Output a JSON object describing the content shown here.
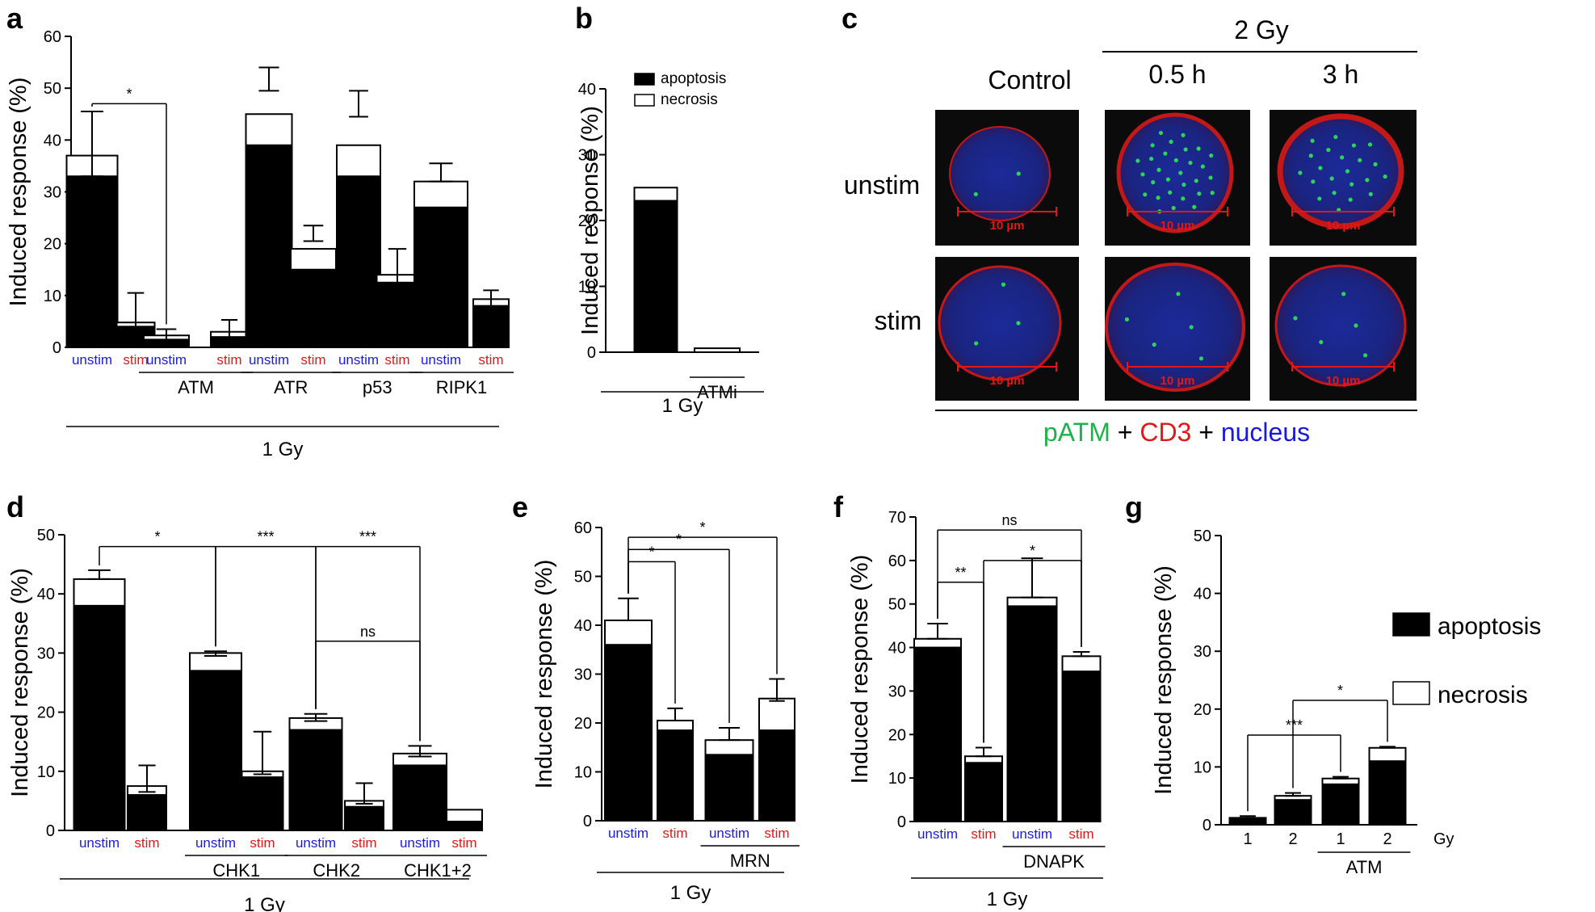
{
  "colors": {
    "apoptosis": "#000000",
    "necrosis": "#ffffff",
    "unstim": "#1a1adc",
    "stim": "#e01818",
    "green": "#1db24a",
    "red": "#e01818",
    "blue": "#1a1adc"
  },
  "micro": {
    "title": "2 Gy",
    "cols": [
      "Control",
      "0.5 h",
      "3 h"
    ],
    "rows": [
      "unstim",
      "stim"
    ],
    "scalebar": "10 µm",
    "legend": [
      {
        "text": "pATM",
        "color": "#1db24a"
      },
      {
        "text": " + ",
        "color": "#000000"
      },
      {
        "text": "CD3",
        "color": "#e01818"
      },
      {
        "text": " + ",
        "color": "#000000"
      },
      {
        "text": "nucleus",
        "color": "#1a1adc"
      }
    ]
  },
  "chart_data": [
    {
      "panel": "a",
      "type": "bar",
      "ylabel": "Induced response (%)",
      "ylim": [
        0,
        60
      ],
      "yticks": [
        0,
        10,
        20,
        30,
        40,
        50,
        60
      ],
      "categories": [
        "unstim",
        "stim",
        "unstim",
        "stim",
        "unstim",
        "stim",
        "unstim",
        "stim",
        "unstim",
        "stim"
      ],
      "series": [
        {
          "name": "apoptosis",
          "values": [
            33,
            4,
            1.5,
            2,
            39,
            15,
            33,
            12.5,
            27,
            8
          ]
        },
        {
          "name": "necrosis",
          "values": [
            4,
            0.8,
            0.8,
            1,
            6,
            4,
            6,
            1.5,
            5,
            1.3
          ]
        }
      ],
      "errors": [
        [
          33,
          45.5
        ],
        [
          3.5,
          10.5
        ],
        [
          0,
          3.5
        ],
        [
          1.5,
          5.3
        ],
        [
          49.5,
          54
        ],
        [
          20.5,
          23.5
        ],
        [
          44.5,
          49.5
        ],
        [
          12,
          19
        ],
        [
          32,
          35.5
        ],
        [
          7,
          11
        ]
      ],
      "groups": [
        {
          "label": "ATM",
          "from": 2,
          "to": 3
        },
        {
          "label": "ATR",
          "from": 4,
          "to": 5
        },
        {
          "label": "p53",
          "from": 6,
          "to": 7
        },
        {
          "label": "RIPK1",
          "from": 8,
          "to": 9
        }
      ],
      "treatment": "1 Gy",
      "sig": [
        {
          "from": 0,
          "to": 2,
          "y": 47,
          "text": "*"
        }
      ]
    },
    {
      "panel": "b",
      "type": "bar",
      "ylabel": "Induced response (%)",
      "ylim": [
        0,
        40
      ],
      "yticks": [
        0,
        10,
        20,
        30,
        40
      ],
      "categories": [
        "",
        ""
      ],
      "series": [
        {
          "name": "apoptosis",
          "values": [
            23,
            0
          ]
        },
        {
          "name": "necrosis",
          "values": [
            2,
            0.6
          ]
        }
      ],
      "groups": [
        {
          "label": "ATMi",
          "from": 1,
          "to": 1
        }
      ],
      "treatment": "1 Gy",
      "legend": [
        "apoptosis",
        "necrosis"
      ]
    },
    {
      "panel": "d",
      "type": "bar",
      "ylabel": "Induced response (%)",
      "ylim": [
        0,
        50
      ],
      "yticks": [
        0,
        10,
        20,
        30,
        40,
        50
      ],
      "categories": [
        "unstim",
        "stim",
        "unstim",
        "stim",
        "unstim",
        "stim",
        "unstim",
        "stim"
      ],
      "series": [
        {
          "name": "apoptosis",
          "values": [
            38,
            6,
            27,
            9,
            17,
            4,
            11,
            1.5
          ]
        },
        {
          "name": "necrosis",
          "values": [
            4.5,
            1.5,
            3,
            1,
            2,
            1,
            2,
            2
          ]
        }
      ],
      "errors": [
        [
          42.5,
          44
        ],
        [
          6.5,
          11
        ],
        [
          29.5,
          30.3
        ],
        [
          9.5,
          16.7
        ],
        [
          18.5,
          19.7
        ],
        [
          4.5,
          8
        ],
        [
          12.5,
          14.3
        ],
        [
          0,
          0
        ]
      ],
      "groups": [
        {
          "label": "CHK1",
          "from": 2,
          "to": 3
        },
        {
          "label": "CHK2",
          "from": 4,
          "to": 5
        },
        {
          "label": "CHK1+2",
          "from": 6,
          "to": 7
        }
      ],
      "treatment": "1 Gy",
      "sig": [
        {
          "from": 0,
          "to": 2,
          "y": 48,
          "text": "*"
        },
        {
          "from": 2,
          "to": 4,
          "y": 48,
          "text": "***"
        },
        {
          "from": 4,
          "to": 6,
          "y": 48,
          "text": "***"
        },
        {
          "from": 4,
          "to": 6,
          "y": 32,
          "text": "ns"
        }
      ]
    },
    {
      "panel": "e",
      "type": "bar",
      "ylabel": "Induced response (%)",
      "ylim": [
        0,
        60
      ],
      "yticks": [
        0,
        10,
        20,
        30,
        40,
        50,
        60
      ],
      "categories": [
        "unstim",
        "stim",
        "unstim",
        "stim"
      ],
      "series": [
        {
          "name": "apoptosis",
          "values": [
            36,
            18.5,
            13.5,
            18.5
          ]
        },
        {
          "name": "necrosis",
          "values": [
            5,
            2,
            3,
            6.5
          ]
        }
      ],
      "errors": [
        [
          41,
          45.5
        ],
        [
          20.5,
          23
        ],
        [
          16.5,
          19
        ],
        [
          24.5,
          29
        ]
      ],
      "groups": [
        {
          "label": "MRN",
          "from": 2,
          "to": 3
        }
      ],
      "treatment": "1 Gy",
      "sig": [
        {
          "from": 0,
          "to": 1,
          "y": 53,
          "text": "*"
        },
        {
          "from": 0,
          "to": 2,
          "y": 55.5,
          "text": "*"
        },
        {
          "from": 0,
          "to": 3,
          "y": 58,
          "text": "*"
        }
      ]
    },
    {
      "panel": "f",
      "type": "bar",
      "ylabel": "Induced response (%)",
      "ylim": [
        0,
        70
      ],
      "yticks": [
        0,
        10,
        20,
        30,
        40,
        50,
        60,
        70
      ],
      "categories": [
        "unstim",
        "stim",
        "unstim",
        "stim"
      ],
      "series": [
        {
          "name": "apoptosis",
          "values": [
            40,
            13.5,
            49.5,
            34.5
          ]
        },
        {
          "name": "necrosis",
          "values": [
            2,
            1.5,
            2,
            3.5
          ]
        }
      ],
      "errors": [
        [
          42,
          45.5
        ],
        [
          15,
          17
        ],
        [
          51.5,
          60.5
        ],
        [
          38,
          39
        ]
      ],
      "groups": [
        {
          "label": "DNAPK",
          "from": 2,
          "to": 3
        }
      ],
      "treatment": "1 Gy",
      "sig": [
        {
          "from": 0,
          "to": 1,
          "y": 55,
          "text": "**"
        },
        {
          "from": 1,
          "to": 3,
          "y": 60,
          "text": "*"
        },
        {
          "from": 0,
          "to": 3,
          "y": 67,
          "text": "ns"
        }
      ]
    },
    {
      "panel": "g",
      "type": "bar",
      "ylabel": "Induced response (%)",
      "ylim": [
        0,
        50
      ],
      "yticks": [
        0,
        10,
        20,
        30,
        40,
        50
      ],
      "categories": [
        "1",
        "2",
        "1",
        "2"
      ],
      "xunit": "Gy",
      "series": [
        {
          "name": "apoptosis",
          "values": [
            1,
            4.3,
            7,
            11
          ]
        },
        {
          "name": "necrosis",
          "values": [
            0.2,
            0.7,
            1,
            2.3
          ]
        }
      ],
      "errors": [
        [
          1.2,
          1.5
        ],
        [
          5,
          5.5
        ],
        [
          8,
          8.3
        ],
        [
          13.3,
          13.5
        ]
      ],
      "groups": [
        {
          "label": "ATM",
          "from": 2,
          "to": 3
        }
      ],
      "sig": [
        {
          "from": 0,
          "to": 2,
          "y": 15.5,
          "text": "***"
        },
        {
          "from": 1,
          "to": 3,
          "y": 21.5,
          "text": "*"
        }
      ],
      "legend": [
        "apoptosis",
        "necrosis"
      ]
    }
  ]
}
